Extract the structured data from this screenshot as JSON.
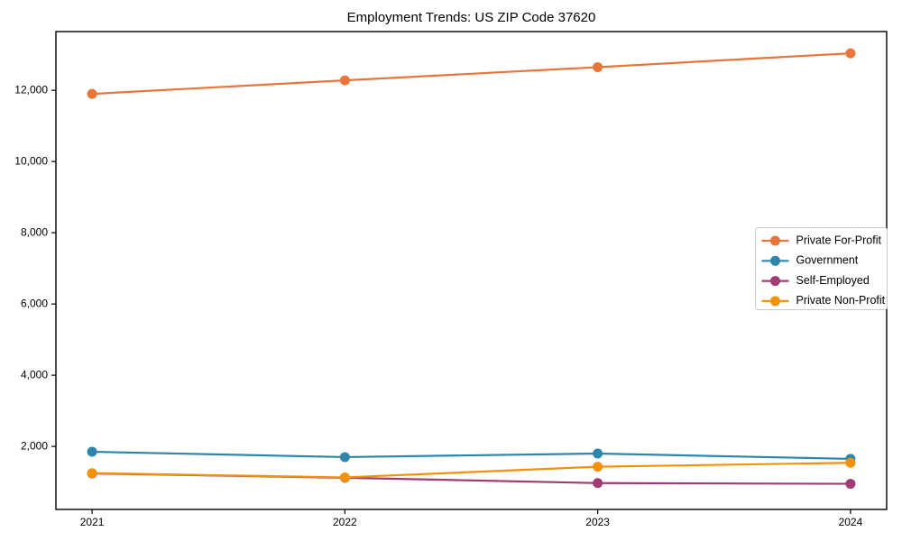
{
  "page": {
    "background": "#ffffff"
  },
  "chart_data": {
    "type": "line",
    "title": "Employment Trends: US ZIP Code 37620",
    "xlabel": "",
    "ylabel": "",
    "x": [
      2021,
      2022,
      2023,
      2024
    ],
    "x_tick_labels": [
      "2021",
      "2022",
      "2023",
      "2024"
    ],
    "y_tick_values": [
      2000,
      4000,
      6000,
      8000,
      10000,
      12000
    ],
    "y_tick_labels": [
      "2,000",
      "4,000",
      "6,000",
      "8,000",
      "10,000",
      "12,000"
    ],
    "xlim": [
      2020.857,
      2024.143
    ],
    "ylim": [
      230,
      13650
    ],
    "grid": false,
    "legend_position": "center-right",
    "series": [
      {
        "name": "Private For-Profit",
        "color": "#E8763B",
        "values": [
          11900,
          12280,
          12650,
          13040
        ]
      },
      {
        "name": "Government",
        "color": "#2E86AB",
        "values": [
          1850,
          1700,
          1800,
          1650
        ]
      },
      {
        "name": "Self-Employed",
        "color": "#A23B72",
        "values": [
          1240,
          1120,
          970,
          950
        ]
      },
      {
        "name": "Private Non-Profit",
        "color": "#F1930A",
        "values": [
          1250,
          1130,
          1430,
          1540
        ]
      }
    ],
    "style": {
      "axis_color": "#000000",
      "tick_label_color": "#000000",
      "legend_border_color": "#c9c9c9",
      "legend_background": "#ffffff",
      "line_width": 2.2,
      "marker_radius": 5.5,
      "marker": "circle"
    }
  }
}
